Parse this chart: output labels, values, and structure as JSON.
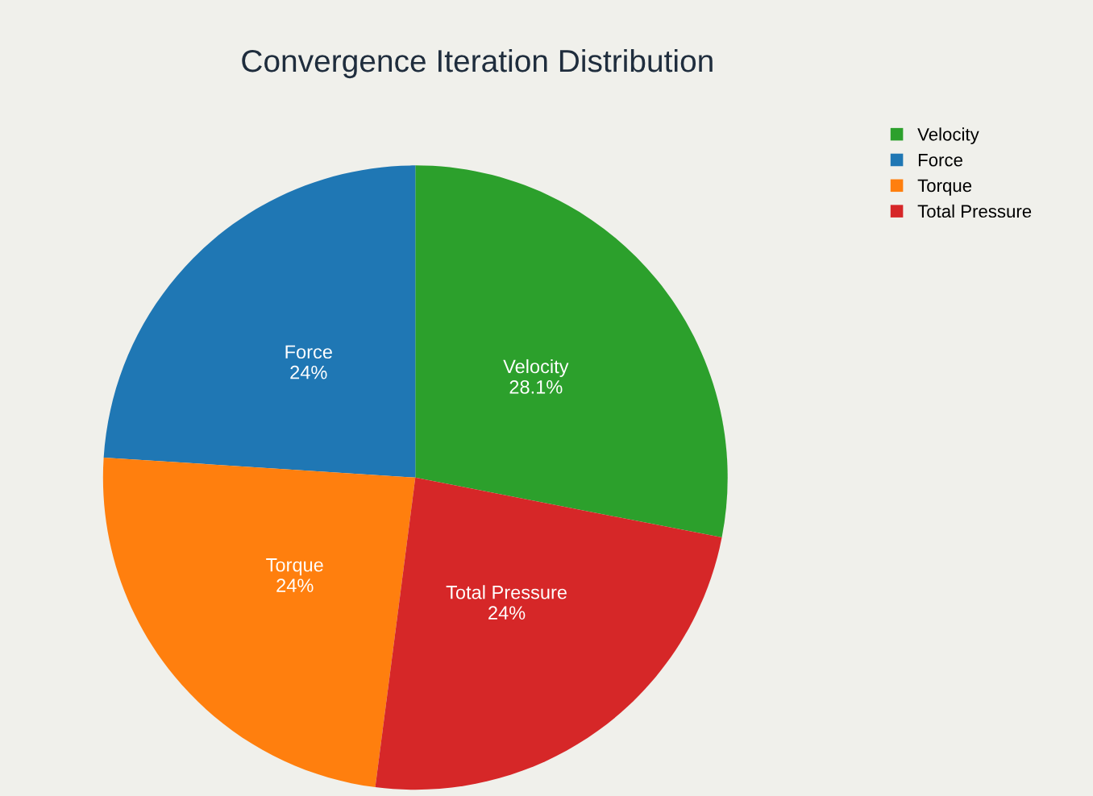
{
  "chart_data": {
    "type": "pie",
    "title": "Convergence Iteration Distribution",
    "categories": [
      "Velocity",
      "Force",
      "Torque",
      "Total Pressure"
    ],
    "values": [
      28.1,
      24,
      24,
      24
    ],
    "value_labels": [
      "28.1%",
      "24%",
      "24%",
      "24%"
    ],
    "colors": [
      "#2ca02c",
      "#1f77b4",
      "#ff7f0e",
      "#d62728"
    ],
    "legend": "top right"
  }
}
